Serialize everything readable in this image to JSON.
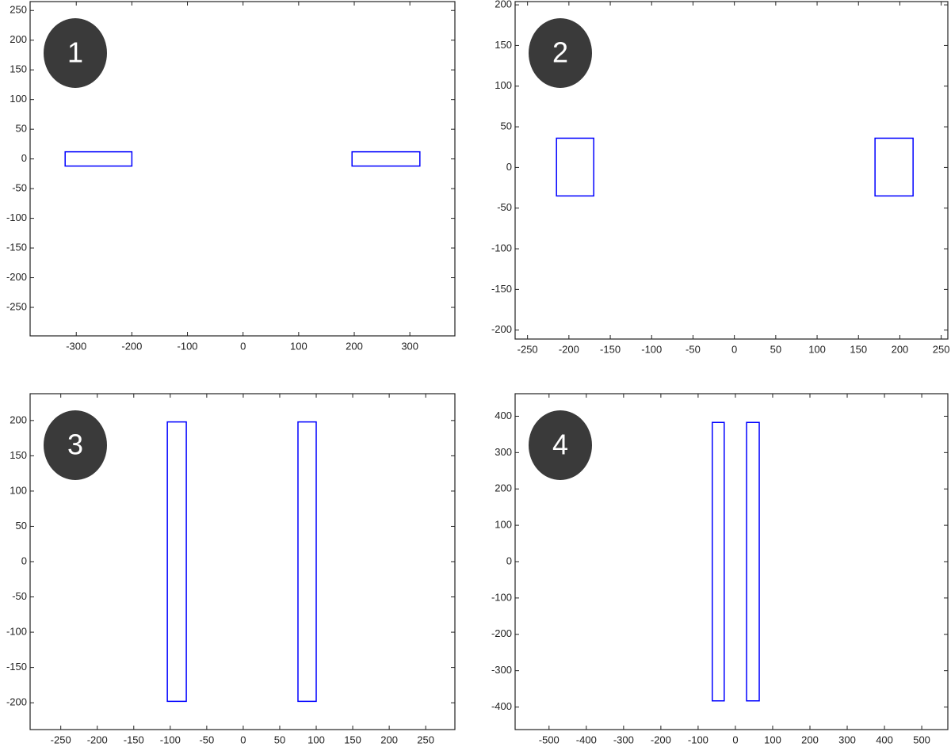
{
  "chart_data": [
    {
      "type": "rectangle",
      "label": "1",
      "color": "#0000ff",
      "xlim": [
        -383,
        381
      ],
      "ylim": [
        -298,
        265
      ],
      "xticks": [
        -300,
        -200,
        -100,
        0,
        100,
        200,
        300
      ],
      "yticks": [
        -250,
        -200,
        -150,
        -100,
        -50,
        0,
        50,
        100,
        150,
        200,
        250
      ],
      "rects": [
        {
          "x": [
            -320,
            -200
          ],
          "y": [
            -12,
            12
          ]
        },
        {
          "x": [
            196,
            318
          ],
          "y": [
            -12,
            12
          ]
        }
      ]
    },
    {
      "type": "rectangle",
      "label": "2",
      "color": "#0000ff",
      "xlim": [
        -265,
        258
      ],
      "ylim": [
        -211,
        204
      ],
      "xticks": [
        -250,
        -200,
        -150,
        -100,
        -50,
        0,
        50,
        100,
        150,
        200,
        250
      ],
      "yticks": [
        -200,
        -150,
        -100,
        -50,
        0,
        50,
        100,
        150,
        200
      ],
      "rects": [
        {
          "x": [
            -215,
            -170
          ],
          "y": [
            -35,
            36
          ]
        },
        {
          "x": [
            170,
            216
          ],
          "y": [
            -35,
            36
          ]
        }
      ]
    },
    {
      "type": "rectangle",
      "label": "3",
      "color": "#0000ff",
      "xlim": [
        -292,
        290
      ],
      "ylim": [
        -238,
        238
      ],
      "xticks": [
        -250,
        -200,
        -150,
        -100,
        -50,
        0,
        50,
        100,
        150,
        200,
        250
      ],
      "yticks": [
        -200,
        -150,
        -100,
        -50,
        0,
        50,
        100,
        150,
        200
      ],
      "rects": [
        {
          "x": [
            -104,
            -78
          ],
          "y": [
            -198,
            198
          ]
        },
        {
          "x": [
            75,
            100
          ],
          "y": [
            -198,
            198
          ]
        }
      ]
    },
    {
      "type": "rectangle",
      "label": "4",
      "color": "#0000ff",
      "xlim": [
        -591,
        570
      ],
      "ylim": [
        -462,
        462
      ],
      "xticks": [
        -500,
        -400,
        -300,
        -200,
        -100,
        0,
        100,
        200,
        300,
        400,
        500
      ],
      "yticks": [
        -400,
        -300,
        -200,
        -100,
        0,
        100,
        200,
        300,
        400
      ],
      "rects": [
        {
          "x": [
            -62,
            -30
          ],
          "y": [
            -383,
            383
          ]
        },
        {
          "x": [
            30,
            64
          ],
          "y": [
            -383,
            383
          ]
        }
      ]
    }
  ]
}
